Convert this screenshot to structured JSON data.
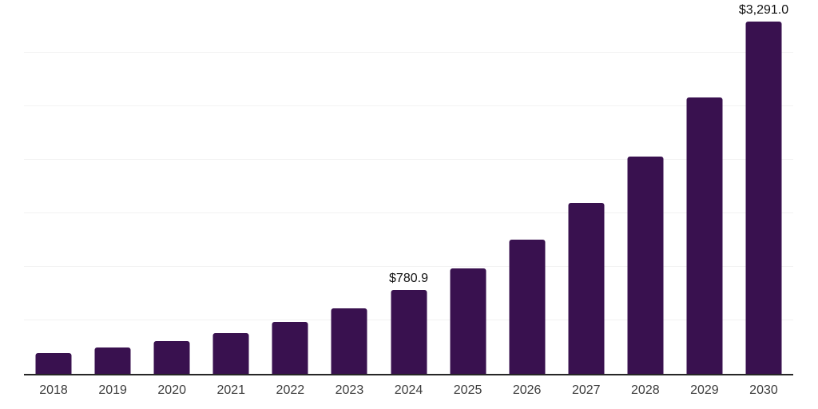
{
  "chart_data": {
    "type": "bar",
    "title": "",
    "xlabel": "",
    "ylabel": "",
    "categories": [
      "2018",
      "2019",
      "2020",
      "2021",
      "2022",
      "2023",
      "2024",
      "2025",
      "2026",
      "2027",
      "2028",
      "2029",
      "2030"
    ],
    "values": [
      197,
      245,
      303,
      377,
      483,
      611,
      780.9,
      984,
      1256,
      1595,
      2028,
      2580,
      3291
    ],
    "annotations": [
      {
        "category": "2024",
        "label": "$780.9"
      },
      {
        "category": "2030",
        "label": "$3,291.0"
      }
    ],
    "ylim": [
      0,
      3500
    ],
    "grid_step": 500,
    "grid": "horizontal",
    "legend": false,
    "colors": {
      "bar": "#39114F",
      "gridline": "#f2f2f2",
      "axis_line": "#262626",
      "tick_label": "#3d3d3d",
      "annotation_text": "#111111",
      "background": "#ffffff"
    }
  }
}
